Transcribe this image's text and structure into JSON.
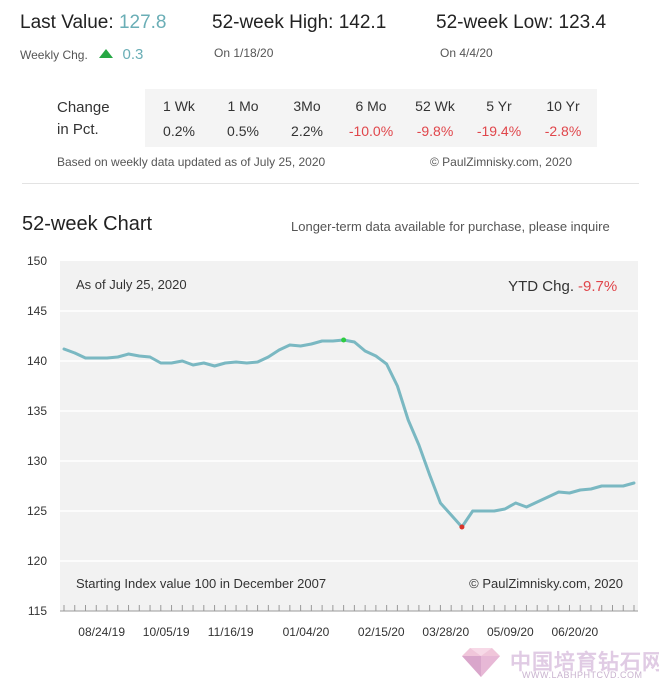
{
  "header": {
    "last_value_label": "Last Value:",
    "last_value": "127.8",
    "high_label": "52-week High:",
    "high_value": "142.1",
    "high_date": "On 1/18/20",
    "low_label": "52-week Low:",
    "low_value": "123.4",
    "low_date": "On 4/4/20",
    "weekly_chg_label": "Weekly Chg.",
    "weekly_chg_value": "0.3"
  },
  "change_table": {
    "label_line1": "Change",
    "label_line2": "in Pct.",
    "columns": [
      {
        "header": "1 Wk",
        "value": "0.2%",
        "negative": false
      },
      {
        "header": "1 Mo",
        "value": "0.5%",
        "negative": false
      },
      {
        "header": "3Mo",
        "value": "2.2%",
        "negative": false
      },
      {
        "header": "6 Mo",
        "value": "-10.0%",
        "negative": true
      },
      {
        "header": "52 Wk",
        "value": "-9.8%",
        "negative": true
      },
      {
        "header": "5 Yr",
        "value": "-19.4%",
        "negative": true
      },
      {
        "header": "10 Yr",
        "value": "-2.8%",
        "negative": true
      }
    ],
    "note": "Based on weekly data updated as of July 25, 2020",
    "copyright": "© PaulZimnisky.com, 2020"
  },
  "chart_section": {
    "title": "52-week Chart",
    "purchase_note": "Longer-term data available for purchase, please inquire"
  },
  "chart_data": {
    "type": "line",
    "as_of": "As of July 25, 2020",
    "ytd_label": "YTD Chg.",
    "ytd_value": "-9.7%",
    "starting_note": "Starting Index value 100 in December 2007",
    "copyright": "© PaulZimnisky.com, 2020",
    "ylim": [
      115,
      150
    ],
    "yticks": [
      115,
      120,
      125,
      130,
      135,
      140,
      145,
      150
    ],
    "x_tick_labels": [
      "08/24/19",
      "10/05/19",
      "11/16/19",
      "01/04/20",
      "02/15/20",
      "03/28/20",
      "05/09/20",
      "06/20/20"
    ],
    "x_tick_label_weeks": [
      3.5,
      9.5,
      15.5,
      22.5,
      29.5,
      35.5,
      41.5,
      47.5
    ],
    "grid": true,
    "line_color": "#7ab8c2",
    "high_marker_color": "#2ecc40",
    "low_marker_color": "#d9342b",
    "high_index": 26,
    "low_index": 37,
    "values": [
      141.2,
      140.8,
      140.3,
      140.3,
      140.3,
      140.4,
      140.7,
      140.5,
      140.4,
      139.8,
      139.8,
      140.0,
      139.6,
      139.8,
      139.5,
      139.8,
      139.9,
      139.8,
      139.9,
      140.4,
      141.1,
      141.6,
      141.5,
      141.7,
      142.0,
      142.0,
      142.1,
      141.9,
      141.0,
      140.5,
      139.7,
      137.5,
      134.1,
      131.6,
      128.6,
      125.8,
      124.6,
      123.4,
      125.0,
      125.0,
      125.0,
      125.2,
      125.8,
      125.4,
      125.9,
      126.4,
      126.9,
      126.8,
      127.1,
      127.2,
      127.5,
      127.5,
      127.5,
      127.8
    ]
  }
}
